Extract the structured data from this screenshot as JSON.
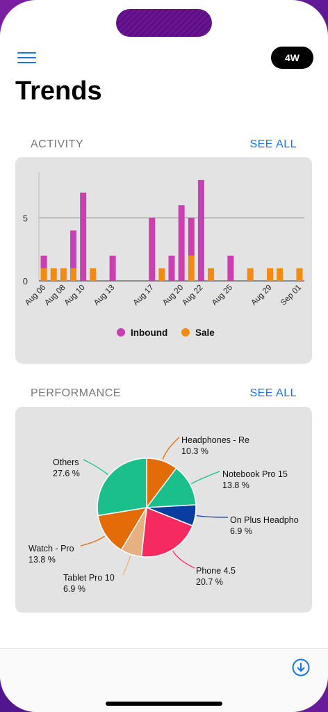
{
  "header": {
    "range_label": "4W",
    "title": "Trends"
  },
  "activity": {
    "section_title": "ACTIVITY",
    "see_all": "SEE ALL",
    "chart_data": {
      "type": "bar",
      "stacked": true,
      "y_ticks": [
        "0",
        "5"
      ],
      "ylim": [
        0,
        8
      ],
      "categories": [
        "Aug 06",
        "Aug 07",
        "Aug 08",
        "Aug 09",
        "Aug 10",
        "Aug 11",
        "Aug 12",
        "Aug 13",
        "Aug 14",
        "Aug 15",
        "Aug 16",
        "Aug 17",
        "Aug 18",
        "Aug 19",
        "Aug 20",
        "Aug 21",
        "Aug 22",
        "Aug 23",
        "Aug 24",
        "Aug 25",
        "Aug 26",
        "Aug 27",
        "Aug 28",
        "Aug 29",
        "Aug 30",
        "Aug 31",
        "Sep 01"
      ],
      "x_tick_labels": [
        "Aug 06",
        "Aug 08",
        "Aug 10",
        "Aug 13",
        "Aug 17",
        "Aug 20",
        "Aug 22",
        "Aug 25",
        "Aug 29",
        "Sep 01"
      ],
      "bars": [
        {
          "x": "Aug 06",
          "sale": 1,
          "inbound": 1
        },
        {
          "x": "Aug 07",
          "sale": 1,
          "inbound": 0
        },
        {
          "x": "Aug 08",
          "sale": 1,
          "inbound": 0
        },
        {
          "x": "Aug 09",
          "sale": 1,
          "inbound": 3
        },
        {
          "x": "Aug 10",
          "sale": 0,
          "inbound": 7
        },
        {
          "x": "Aug 11",
          "sale": 1,
          "inbound": 0
        },
        {
          "x": "Aug 13",
          "sale": 0,
          "inbound": 2
        },
        {
          "x": "Aug 17",
          "sale": 0,
          "inbound": 5
        },
        {
          "x": "Aug 18",
          "sale": 1,
          "inbound": 0
        },
        {
          "x": "Aug 19",
          "sale": 0,
          "inbound": 2
        },
        {
          "x": "Aug 20",
          "sale": 0,
          "inbound": 6
        },
        {
          "x": "Aug 21",
          "sale": 2,
          "inbound": 3
        },
        {
          "x": "Aug 22",
          "sale": 0,
          "inbound": 8
        },
        {
          "x": "Aug 23",
          "sale": 1,
          "inbound": 0
        },
        {
          "x": "Aug 25",
          "sale": 0,
          "inbound": 2
        },
        {
          "x": "Aug 27",
          "sale": 1,
          "inbound": 0
        },
        {
          "x": "Aug 29",
          "sale": 1,
          "inbound": 0
        },
        {
          "x": "Aug 30",
          "sale": 1,
          "inbound": 0
        },
        {
          "x": "Sep 01",
          "sale": 1,
          "inbound": 0
        }
      ],
      "series": [
        {
          "name": "Inbound",
          "color": "#cc3faf"
        },
        {
          "name": "Sale",
          "color": "#f48a12"
        }
      ],
      "grid_lines": true,
      "legend_position": "bottom-center"
    }
  },
  "performance": {
    "section_title": "PERFORMANCE",
    "see_all": "SEE ALL",
    "chart_data": {
      "type": "pie",
      "slices": [
        {
          "label": "Headphones - Re",
          "percent_label": "10.3 %",
          "value": 10.3,
          "color": "#e36c09"
        },
        {
          "label": "Notebook Pro 15",
          "percent_label": "13.8 %",
          "value": 13.8,
          "color": "#1abf8c"
        },
        {
          "label": "On Plus Headpho",
          "percent_label": "6.9 %",
          "value": 6.9,
          "color": "#0a3da0"
        },
        {
          "label": "Phone 4.5",
          "percent_label": "20.7 %",
          "value": 20.7,
          "color": "#f52a61"
        },
        {
          "label": "Tablet Pro 10",
          "percent_label": "6.9 %",
          "value": 6.9,
          "color": "#e6b080"
        },
        {
          "label": "Watch - Pro",
          "percent_label": "13.8 %",
          "value": 13.8,
          "color": "#e36c09"
        },
        {
          "label": "Others",
          "percent_label": "27.6 %",
          "value": 27.6,
          "color": "#1abf8c"
        }
      ]
    }
  },
  "icons": {
    "menu": "hamburger-icon",
    "download": "download-circle-icon"
  }
}
